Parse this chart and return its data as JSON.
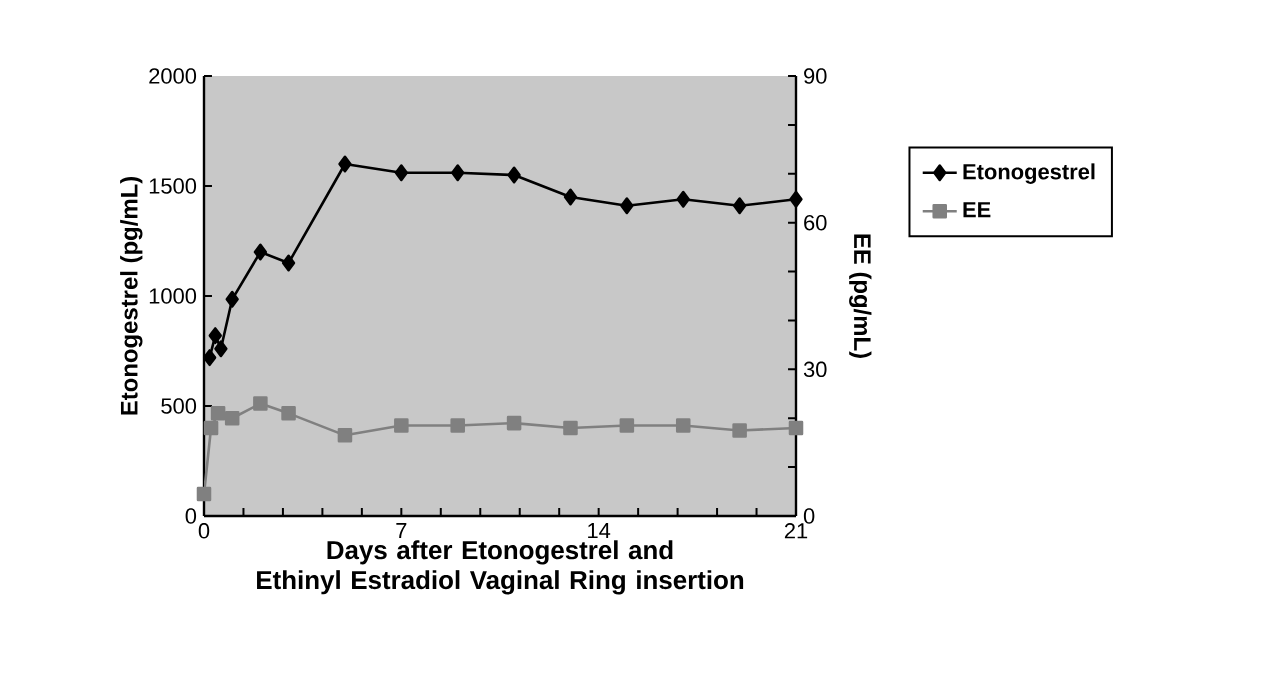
{
  "chart_data": {
    "type": "line",
    "xlabel": "Days after Etonogestrel and\nEthinyl Estradiol Vaginal Ring insertion",
    "ylabel": "Etonogestrel (pg/mL)",
    "y2label": "EE (pg/mL)",
    "series": [
      {
        "name": "Etonogestrel",
        "color": "#000000",
        "marker": "diamond",
        "x": [
          0.2,
          0.4,
          0.6,
          1,
          2,
          3,
          5,
          7,
          9,
          11,
          13,
          15,
          17,
          19,
          21
        ],
        "values": [
          720,
          820,
          760,
          985,
          1200,
          1150,
          1600,
          1560,
          1560,
          1550,
          1450,
          1410,
          1440,
          1410,
          1440
        ]
      },
      {
        "name": "EE",
        "color": "#808080",
        "marker": "square",
        "axis": "y2",
        "x": [
          0,
          0.25,
          0.5,
          1,
          2,
          3,
          5,
          7,
          9,
          11,
          13,
          15,
          17,
          19,
          21
        ],
        "values": [
          4.5,
          18,
          21,
          20,
          23,
          21,
          16.5,
          18.5,
          18.5,
          19,
          18,
          18.5,
          18.5,
          17.5,
          18
        ]
      }
    ],
    "xlim": [
      0,
      21
    ],
    "xticks": [
      0,
      {
        "value": 1.4,
        "label": null
      },
      {
        "value": 2.8,
        "label": null
      },
      {
        "value": 4.2,
        "label": null
      },
      {
        "value": 5.6,
        "label": null
      },
      7,
      {
        "value": 8.4,
        "label": null
      },
      {
        "value": 9.8,
        "label": null
      },
      {
        "value": 11.2,
        "label": null
      },
      {
        "value": 12.6,
        "label": null
      },
      14,
      {
        "value": 15.4,
        "label": null
      },
      {
        "value": 16.8,
        "label": null
      },
      {
        "value": 18.2,
        "label": null
      },
      {
        "value": 19.6,
        "label": null
      },
      21
    ],
    "ylim": [
      0,
      2000
    ],
    "yticks": [
      0,
      500,
      1000,
      1500,
      2000
    ],
    "y2lim": [
      0,
      90
    ],
    "y2ticks": [
      0,
      {
        "value": 10,
        "label": null
      },
      {
        "value": 20,
        "label": null
      },
      30,
      {
        "value": 40,
        "label": null
      },
      {
        "value": 50,
        "label": null
      },
      60,
      {
        "value": 70,
        "label": null
      },
      {
        "value": 80,
        "label": null
      },
      90
    ],
    "legend": "right",
    "grid": false
  }
}
